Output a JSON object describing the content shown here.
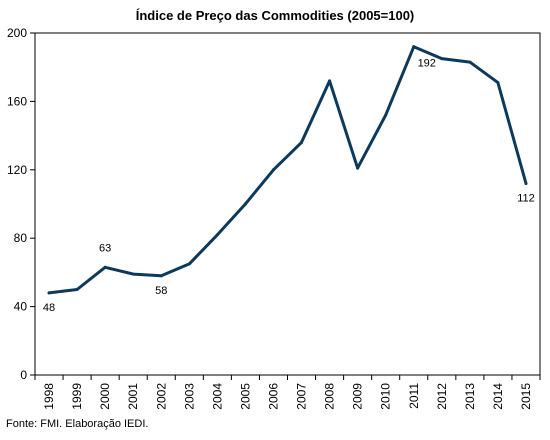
{
  "chart_data": {
    "type": "line",
    "title": "Índice de Preço das Commodities (2005=100)",
    "x": [
      "1998",
      "1999",
      "2000",
      "2001",
      "2002",
      "2003",
      "2004",
      "2005",
      "2006",
      "2007",
      "2008",
      "2009",
      "2010",
      "2011",
      "2012",
      "2013",
      "2014",
      "2015"
    ],
    "series": [
      {
        "values": [
          48,
          50,
          63,
          59,
          58,
          65,
          82,
          100,
          120,
          136,
          172,
          121,
          152,
          192,
          185,
          183,
          171,
          112
        ],
        "color": "#0b3a5e"
      }
    ],
    "data_labels": [
      {
        "x": "1998",
        "text": "48",
        "position": "below"
      },
      {
        "x": "2000",
        "text": "63",
        "position": "above"
      },
      {
        "x": "2002",
        "text": "58",
        "position": "below"
      },
      {
        "x": "2011",
        "text": "192",
        "position": "below-right"
      },
      {
        "x": "2015",
        "text": "112",
        "position": "below"
      }
    ],
    "y_ticks": [
      "0",
      "40",
      "80",
      "120",
      "160",
      "200"
    ],
    "ylim": [
      0,
      200
    ],
    "grid": false,
    "legend": "none",
    "xlabel": "",
    "ylabel": ""
  },
  "footer": {
    "source": "Fonte: FMI. Elaboração IEDI."
  }
}
